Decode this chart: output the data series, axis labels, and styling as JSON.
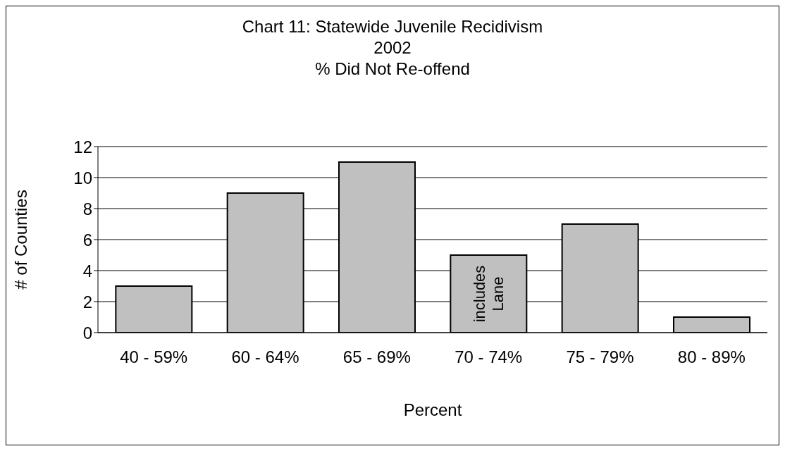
{
  "chart_data": {
    "type": "bar",
    "title": "Chart 11: Statewide Juvenile Recidivism",
    "subtitle": "2002\n% Did Not Re-offend",
    "xlabel": "Percent",
    "ylabel": "# of Counties",
    "categories": [
      "40 - 59%",
      "60 - 64%",
      "65 - 69%",
      "70 - 74%",
      "75 - 79%",
      "80 - 89%"
    ],
    "values": [
      3,
      9,
      11,
      5,
      7,
      1
    ],
    "color": "#c0c0c0",
    "ylim": [
      0,
      12
    ],
    "yticks": [
      0,
      2,
      4,
      6,
      8,
      10,
      12
    ],
    "grid": "y",
    "legend": false,
    "annotations": [
      "includes Lane"
    ]
  }
}
